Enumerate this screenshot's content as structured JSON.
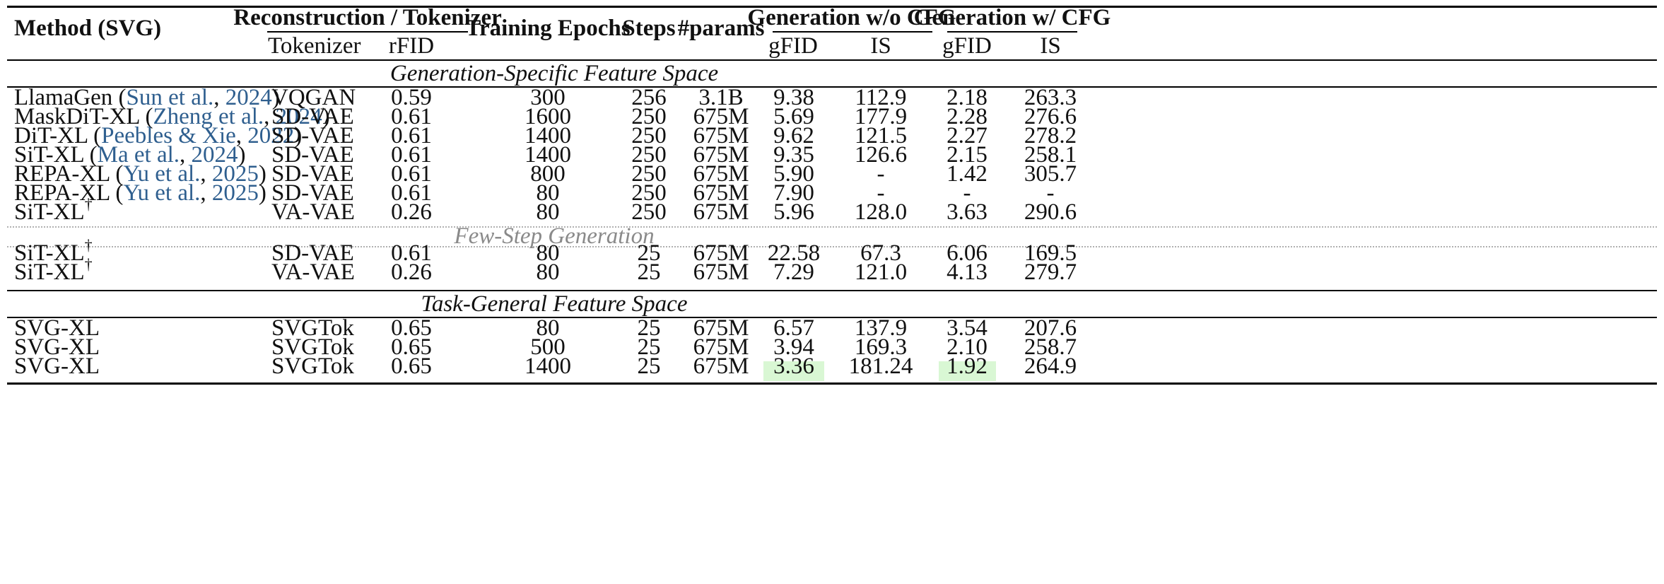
{
  "table": {
    "header": {
      "method": "Method (SVG)",
      "recon_group": "Reconstruction / Tokenizer",
      "tokenizer": "Tokenizer",
      "rfid": "rFID",
      "epochs": "Training Epochs",
      "steps": "Steps",
      "params": "#params",
      "gen_nocfg_group": "Generation w/o CFG",
      "gen_cfg_group": "Generation w/ CFG",
      "gfid": "gFID",
      "is": "IS"
    },
    "sections": [
      {
        "title": "Generation-Specific Feature Space",
        "style": "italic"
      },
      {
        "title": "Few-Step Generation",
        "style": "italic-gray"
      },
      {
        "title": "Task-General Feature Space",
        "style": "italic"
      }
    ],
    "rows": [
      {
        "method": "LlamaGen",
        "cite_author": "Sun et al.",
        "cite_year": "2024",
        "dagger": "",
        "tokenizer": "VQGAN",
        "rfid": "0.59",
        "epochs": "300",
        "steps": "256",
        "params": "3.1B",
        "gfid_nocfg": "9.38",
        "is_nocfg": "112.9",
        "gfid_cfg": "2.18",
        "is_cfg": "263.3"
      },
      {
        "method": "MaskDiT-XL",
        "cite_author": "Zheng et al.",
        "cite_year": "2024",
        "dagger": "",
        "tokenizer": "SD-VAE",
        "rfid": "0.61",
        "epochs": "1600",
        "steps": "250",
        "params": "675M",
        "gfid_nocfg": "5.69",
        "is_nocfg": "177.9",
        "gfid_cfg": "2.28",
        "is_cfg": "276.6"
      },
      {
        "method": "DiT-XL",
        "cite_author": "Peebles & Xie",
        "cite_year": "2022",
        "dagger": "",
        "tokenizer": "SD-VAE",
        "rfid": "0.61",
        "epochs": "1400",
        "steps": "250",
        "params": "675M",
        "gfid_nocfg": "9.62",
        "is_nocfg": "121.5",
        "gfid_cfg": "2.27",
        "is_cfg": "278.2"
      },
      {
        "method": "SiT-XL",
        "cite_author": "Ma et al.",
        "cite_year": "2024",
        "dagger": "",
        "tokenizer": "SD-VAE",
        "rfid": "0.61",
        "epochs": "1400",
        "steps": "250",
        "params": "675M",
        "gfid_nocfg": "9.35",
        "is_nocfg": "126.6",
        "gfid_cfg": "2.15",
        "is_cfg": "258.1"
      },
      {
        "method": "REPA-XL",
        "cite_author": "Yu et al.",
        "cite_year": "2025",
        "dagger": "",
        "tokenizer": "SD-VAE",
        "rfid": "0.61",
        "epochs": "800",
        "steps": "250",
        "params": "675M",
        "gfid_nocfg": "5.90",
        "is_nocfg": "-",
        "gfid_cfg": "1.42",
        "is_cfg": "305.7"
      },
      {
        "method": "REPA-XL",
        "cite_author": "Yu et al.",
        "cite_year": "2025",
        "dagger": "",
        "tokenizer": "SD-VAE",
        "rfid": "0.61",
        "epochs": "80",
        "steps": "250",
        "params": "675M",
        "gfid_nocfg": "7.90",
        "is_nocfg": "-",
        "gfid_cfg": "-",
        "is_cfg": "-"
      },
      {
        "method": "SiT-XL",
        "cite_author": "",
        "cite_year": "",
        "dagger": "†",
        "tokenizer": "VA-VAE",
        "rfid": "0.26",
        "epochs": "80",
        "steps": "250",
        "params": "675M",
        "gfid_nocfg": "5.96",
        "is_nocfg": "128.0",
        "gfid_cfg": "3.63",
        "is_cfg": "290.6"
      },
      {
        "method": "SiT-XL",
        "cite_author": "",
        "cite_year": "",
        "dagger": "†",
        "tokenizer": "SD-VAE",
        "rfid": "0.61",
        "epochs": "80",
        "steps": "25",
        "params": "675M",
        "gfid_nocfg": "22.58",
        "is_nocfg": "67.3",
        "gfid_cfg": "6.06",
        "is_cfg": "169.5"
      },
      {
        "method": "SiT-XL",
        "cite_author": "",
        "cite_year": "",
        "dagger": "†",
        "tokenizer": "VA-VAE",
        "rfid": "0.26",
        "epochs": "80",
        "steps": "25",
        "params": "675M",
        "gfid_nocfg": "7.29",
        "is_nocfg": "121.0",
        "gfid_cfg": "4.13",
        "is_cfg": "279.7"
      },
      {
        "method": "SVG-XL",
        "cite_author": "",
        "cite_year": "",
        "dagger": "",
        "tokenizer": "SVGTok",
        "rfid": "0.65",
        "epochs": "80",
        "steps": "25",
        "params": "675M",
        "gfid_nocfg": "6.57",
        "is_nocfg": "137.9",
        "gfid_cfg": "3.54",
        "is_cfg": "207.6"
      },
      {
        "method": "SVG-XL",
        "cite_author": "",
        "cite_year": "",
        "dagger": "",
        "tokenizer": "SVGTok",
        "rfid": "0.65",
        "epochs": "500",
        "steps": "25",
        "params": "675M",
        "gfid_nocfg": "3.94",
        "is_nocfg": "169.3",
        "gfid_cfg": "2.10",
        "is_cfg": "258.7"
      },
      {
        "method": "SVG-XL",
        "cite_author": "",
        "cite_year": "",
        "dagger": "",
        "tokenizer": "SVGTok",
        "rfid": "0.65",
        "epochs": "1400",
        "steps": "25",
        "params": "675M",
        "gfid_nocfg": "3.36",
        "is_nocfg": "181.24",
        "gfid_cfg": "1.92",
        "is_cfg": "264.9"
      }
    ],
    "highlight_color": "#d9f7d4",
    "citation_color": "#2f5f8f"
  }
}
